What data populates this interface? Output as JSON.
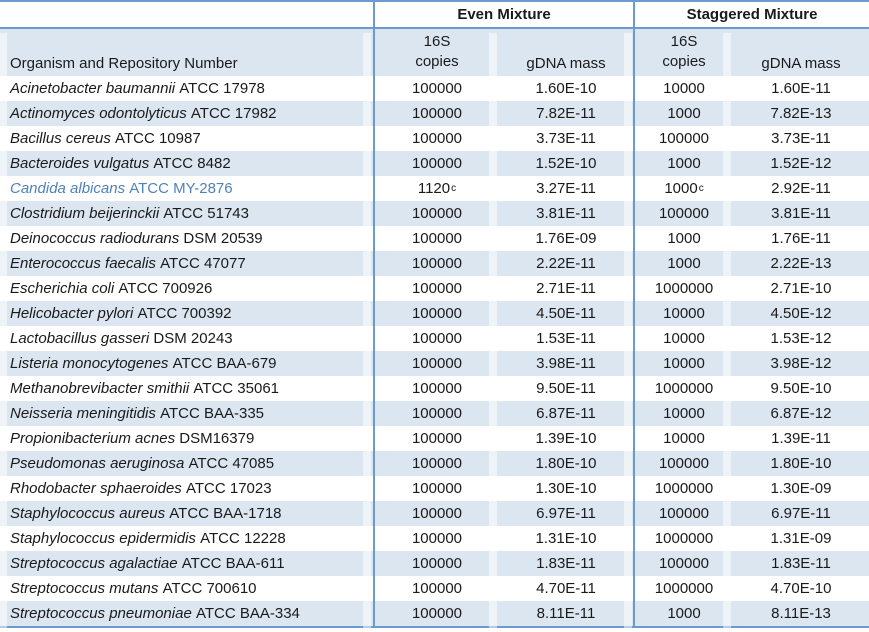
{
  "colors": {
    "border_blue": "#6b9bce",
    "row_shade": "#dce6f1",
    "highlight_blue": "#4f81bd",
    "text": "#1a1a1a"
  },
  "table": {
    "organism_header": "Organism and Repository Number",
    "groups": [
      {
        "label": "Even Mixture"
      },
      {
        "label": "Staggered Mixture"
      }
    ],
    "copies_header": {
      "line1": "16S",
      "line2": "copies"
    },
    "gdna_header": "gDNA mass",
    "rows": [
      {
        "name_italic": "Acinetobacter baumannii",
        "name_rest": "ATCC 17978",
        "highlight": false,
        "cells": [
          {
            "v": "100000"
          },
          {
            "v": "1.60E-10"
          },
          {
            "v": "10000"
          },
          {
            "v": "1.60E-11"
          }
        ]
      },
      {
        "name_italic": "Actinomyces odontolyticus",
        "name_rest": "ATCC 17982",
        "highlight": false,
        "cells": [
          {
            "v": "100000"
          },
          {
            "v": "7.82E-11"
          },
          {
            "v": "1000"
          },
          {
            "v": "7.82E-13"
          }
        ]
      },
      {
        "name_italic": "Bacillus cereus",
        "name_rest": "ATCC 10987",
        "highlight": false,
        "cells": [
          {
            "v": "100000"
          },
          {
            "v": "3.73E-11"
          },
          {
            "v": "100000"
          },
          {
            "v": "3.73E-11"
          }
        ]
      },
      {
        "name_italic": "Bacteroides vulgatus",
        "name_rest": "ATCC 8482",
        "highlight": false,
        "cells": [
          {
            "v": "100000"
          },
          {
            "v": "1.52E-10"
          },
          {
            "v": "1000"
          },
          {
            "v": "1.52E-12"
          }
        ]
      },
      {
        "name_italic": "Candida albicans",
        "name_rest": "ATCC MY-2876",
        "highlight": true,
        "cells": [
          {
            "v": "1120",
            "sup": "c"
          },
          {
            "v": "3.27E-11"
          },
          {
            "v": "1000",
            "sup": "c"
          },
          {
            "v": "2.92E-11"
          }
        ]
      },
      {
        "name_italic": "Clostridium beijerinckii",
        "name_rest": "ATCC 51743",
        "highlight": false,
        "cells": [
          {
            "v": "100000"
          },
          {
            "v": "3.81E-11"
          },
          {
            "v": "100000"
          },
          {
            "v": "3.81E-11"
          }
        ]
      },
      {
        "name_italic": "Deinococcus radiodurans",
        "name_rest": "DSM 20539",
        "highlight": false,
        "cells": [
          {
            "v": "100000"
          },
          {
            "v": "1.76E-09"
          },
          {
            "v": "1000"
          },
          {
            "v": "1.76E-11"
          }
        ]
      },
      {
        "name_italic": "Enterococcus faecalis",
        "name_rest": "ATCC 47077",
        "highlight": false,
        "cells": [
          {
            "v": "100000"
          },
          {
            "v": "2.22E-11"
          },
          {
            "v": "1000"
          },
          {
            "v": "2.22E-13"
          }
        ]
      },
      {
        "name_italic": "Escherichia coli",
        "name_rest": "ATCC 700926",
        "highlight": false,
        "cells": [
          {
            "v": "100000"
          },
          {
            "v": "2.71E-11"
          },
          {
            "v": "1000000"
          },
          {
            "v": "2.71E-10"
          }
        ]
      },
      {
        "name_italic": "Helicobacter pylori",
        "name_rest": "ATCC 700392",
        "highlight": false,
        "cells": [
          {
            "v": "100000"
          },
          {
            "v": "4.50E-11"
          },
          {
            "v": "10000"
          },
          {
            "v": "4.50E-12"
          }
        ]
      },
      {
        "name_italic": "Lactobacillus gasseri",
        "name_rest": "DSM 20243",
        "highlight": false,
        "cells": [
          {
            "v": "100000"
          },
          {
            "v": "1.53E-11"
          },
          {
            "v": "10000"
          },
          {
            "v": "1.53E-12"
          }
        ]
      },
      {
        "name_italic": "Listeria monocytogenes",
        "name_rest": "ATCC BAA-679",
        "highlight": false,
        "cells": [
          {
            "v": "100000"
          },
          {
            "v": "3.98E-11"
          },
          {
            "v": "10000"
          },
          {
            "v": "3.98E-12"
          }
        ]
      },
      {
        "name_italic": "Methanobrevibacter smithii",
        "name_rest": "ATCC 35061",
        "highlight": false,
        "cells": [
          {
            "v": "100000"
          },
          {
            "v": "9.50E-11"
          },
          {
            "v": "1000000"
          },
          {
            "v": "9.50E-10"
          }
        ]
      },
      {
        "name_italic": "Neisseria meningitidis",
        "name_rest": "ATCC BAA-335",
        "highlight": false,
        "cells": [
          {
            "v": "100000"
          },
          {
            "v": "6.87E-11"
          },
          {
            "v": "10000"
          },
          {
            "v": "6.87E-12"
          }
        ]
      },
      {
        "name_italic": "Propionibacterium acnes",
        "name_rest": "DSM16379",
        "highlight": false,
        "cells": [
          {
            "v": "100000"
          },
          {
            "v": "1.39E-10"
          },
          {
            "v": "10000"
          },
          {
            "v": "1.39E-11"
          }
        ]
      },
      {
        "name_italic": "Pseudomonas aeruginosa",
        "name_rest": "ATCC 47085",
        "highlight": false,
        "cells": [
          {
            "v": "100000"
          },
          {
            "v": "1.80E-10"
          },
          {
            "v": "100000"
          },
          {
            "v": "1.80E-10"
          }
        ]
      },
      {
        "name_italic": "Rhodobacter sphaeroides",
        "name_rest": "ATCC 17023",
        "highlight": false,
        "cells": [
          {
            "v": "100000"
          },
          {
            "v": "1.30E-10"
          },
          {
            "v": "1000000"
          },
          {
            "v": "1.30E-09"
          }
        ]
      },
      {
        "name_italic": "Staphylococcus aureus",
        "name_rest": "ATCC BAA-1718",
        "highlight": false,
        "cells": [
          {
            "v": "100000"
          },
          {
            "v": "6.97E-11"
          },
          {
            "v": "100000"
          },
          {
            "v": "6.97E-11"
          }
        ]
      },
      {
        "name_italic": "Staphylococcus epidermidis",
        "name_rest": "ATCC 12228",
        "highlight": false,
        "cells": [
          {
            "v": "100000"
          },
          {
            "v": "1.31E-10"
          },
          {
            "v": "1000000"
          },
          {
            "v": "1.31E-09"
          }
        ]
      },
      {
        "name_italic": "Streptococcus agalactiae",
        "name_rest": "ATCC BAA-611",
        "highlight": false,
        "cells": [
          {
            "v": "100000"
          },
          {
            "v": "1.83E-11"
          },
          {
            "v": "100000"
          },
          {
            "v": "1.83E-11"
          }
        ]
      },
      {
        "name_italic": "Streptococcus mutans",
        "name_rest": "ATCC 700610",
        "highlight": false,
        "cells": [
          {
            "v": "100000"
          },
          {
            "v": "4.70E-11"
          },
          {
            "v": "1000000"
          },
          {
            "v": "4.70E-10"
          }
        ]
      },
      {
        "name_italic": "Streptococcus pneumoniae",
        "name_rest": "ATCC BAA-334",
        "highlight": false,
        "cells": [
          {
            "v": "100000"
          },
          {
            "v": "8.11E-11"
          },
          {
            "v": "1000"
          },
          {
            "v": "8.11E-13"
          }
        ]
      }
    ]
  }
}
